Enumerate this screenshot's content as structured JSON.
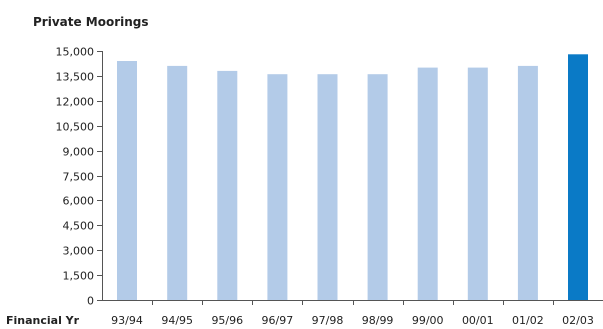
{
  "chart_data": {
    "type": "bar",
    "title": "Private Moorings",
    "xlabel": "Financial Yr",
    "ylabel": "",
    "ylim": [
      0,
      15000
    ],
    "yticks": [
      "0",
      "1,500",
      "3,000",
      "4,500",
      "6,000",
      "7,500",
      "9,000",
      "10,500",
      "12,000",
      "13,500",
      "15,000"
    ],
    "ytick_values": [
      0,
      1500,
      3000,
      4500,
      6000,
      7500,
      9000,
      10500,
      12000,
      13500,
      15000
    ],
    "categories": [
      "93/94",
      "94/95",
      "95/96",
      "96/97",
      "97/98",
      "98/99",
      "99/00",
      "00/01",
      "01/02",
      "02/03"
    ],
    "values": [
      14400,
      14100,
      13800,
      13600,
      13600,
      13600,
      14000,
      14000,
      14100,
      14800
    ],
    "grid": false,
    "legend": "none",
    "colors": {
      "bar": "#b3cbe8",
      "highlight": "#0a7ac6",
      "axis": "#555555",
      "text": "#222222"
    }
  }
}
